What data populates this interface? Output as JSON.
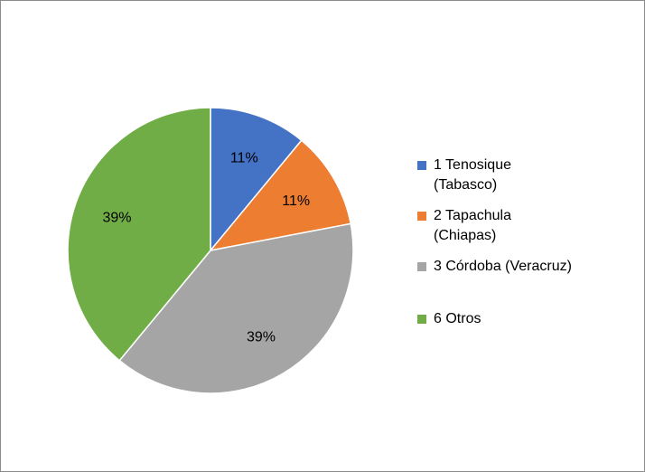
{
  "chart_data": {
    "type": "pie",
    "slices": [
      {
        "label": "1 Tenosique\n(Tabasco)",
        "value": 11,
        "display": "11%",
        "color": "#4472C4"
      },
      {
        "label": "2 Tapachula\n(Chiapas)",
        "value": 11,
        "display": "11%",
        "color": "#ED7D31"
      },
      {
        "label": "3 Córdoba (Veracruz)",
        "value": 39,
        "display": "39%",
        "color": "#A5A5A5"
      },
      {
        "label": "6 Otros",
        "value": 39,
        "display": "39%",
        "color": "#70AD47"
      }
    ],
    "legend_position": "right",
    "data_labels": "percent"
  }
}
